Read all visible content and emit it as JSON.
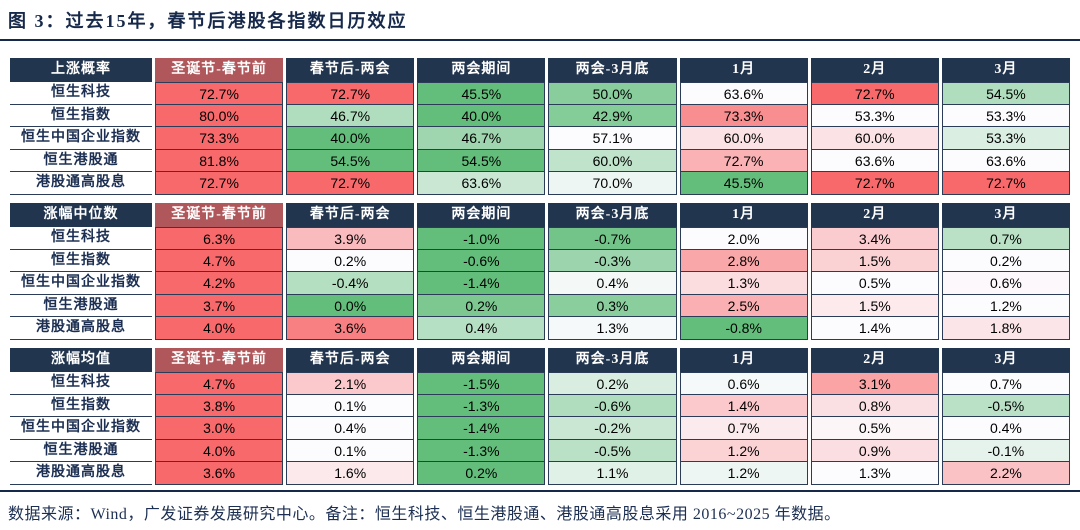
{
  "title": "图 3：过去15年，春节后港股各指数日历效应",
  "source_note": "数据来源：Wind，广发证券发展研究中心。备注：恒生科技、恒生港股通、港股通高股息采用 2016~2025 年数据。",
  "columns": [
    "圣诞节-春节前",
    "春节后-两会",
    "两会期间",
    "两会-3月底",
    "1月",
    "2月",
    "3月"
  ],
  "row_labels": [
    "恒生科技",
    "恒生指数",
    "恒生中国企业指数",
    "恒生港股通",
    "港股通高股息"
  ],
  "colors": {
    "header_bg": "#22354f",
    "header_accent_bg": "#af575a",
    "header_text": "#ffffff",
    "title_text": "#17294a",
    "label_text": "#1c2f52",
    "grid_line": "#2b3c59",
    "scale_high_red": "#f8696b",
    "scale_mid_white": "#fcfcff",
    "scale_low_green": "#63be7b"
  },
  "chart_data": [
    {
      "type": "table",
      "name": "上涨概率",
      "unit": "%",
      "columns": [
        "圣诞节-春节前",
        "春节后-两会",
        "两会期间",
        "两会-3月底",
        "1月",
        "2月",
        "3月"
      ],
      "row_labels": [
        "恒生科技",
        "恒生指数",
        "恒生中国企业指数",
        "恒生港股通",
        "港股通高股息"
      ],
      "values": [
        [
          72.7,
          72.7,
          45.5,
          50.0,
          63.6,
          72.7,
          54.5
        ],
        [
          80.0,
          46.7,
          40.0,
          42.9,
          73.3,
          53.3,
          53.3
        ],
        [
          73.3,
          40.0,
          46.7,
          57.1,
          60.0,
          60.0,
          53.3
        ],
        [
          81.8,
          54.5,
          54.5,
          60.0,
          72.7,
          63.6,
          63.6
        ],
        [
          72.7,
          72.7,
          63.6,
          70.0,
          45.5,
          72.7,
          72.7
        ]
      ],
      "conditional_format": "per-row 3-color scale: row max = red #f8696b, row median = white #fcfcff, row min = green #63be7b"
    },
    {
      "type": "table",
      "name": "涨幅中位数",
      "unit": "%",
      "columns": [
        "圣诞节-春节前",
        "春节后-两会",
        "两会期间",
        "两会-3月底",
        "1月",
        "2月",
        "3月"
      ],
      "row_labels": [
        "恒生科技",
        "恒生指数",
        "恒生中国企业指数",
        "恒生港股通",
        "港股通高股息"
      ],
      "values": [
        [
          6.3,
          3.9,
          -1.0,
          -0.7,
          2.0,
          3.4,
          0.7
        ],
        [
          4.7,
          0.2,
          -0.6,
          -0.3,
          2.8,
          1.5,
          0.2
        ],
        [
          4.2,
          -0.4,
          -1.4,
          0.4,
          1.3,
          0.5,
          0.6
        ],
        [
          3.7,
          0.0,
          0.2,
          0.3,
          2.5,
          1.5,
          1.2
        ],
        [
          4.0,
          3.6,
          0.4,
          1.3,
          -0.8,
          1.4,
          1.8
        ]
      ],
      "conditional_format": "per-row 3-color scale: row max = red #f8696b, row median = white #fcfcff, row min = green #63be7b"
    },
    {
      "type": "table",
      "name": "涨幅均值",
      "unit": "%",
      "columns": [
        "圣诞节-春节前",
        "春节后-两会",
        "两会期间",
        "两会-3月底",
        "1月",
        "2月",
        "3月"
      ],
      "row_labels": [
        "恒生科技",
        "恒生指数",
        "恒生中国企业指数",
        "恒生港股通",
        "港股通高股息"
      ],
      "values": [
        [
          4.7,
          2.1,
          -1.5,
          0.2,
          0.6,
          3.1,
          0.7
        ],
        [
          3.8,
          0.1,
          -1.3,
          -0.6,
          1.4,
          0.8,
          -0.5
        ],
        [
          3.0,
          0.4,
          -1.4,
          -0.2,
          0.7,
          0.5,
          0.4
        ],
        [
          4.0,
          0.1,
          -1.3,
          -0.5,
          1.2,
          0.9,
          -0.1
        ],
        [
          3.6,
          1.6,
          0.2,
          1.1,
          1.2,
          1.3,
          2.2
        ]
      ],
      "conditional_format": "per-row 3-color scale: row max = red #f8696b, row median = white #fcfcff, row min = green #63be7b"
    }
  ]
}
